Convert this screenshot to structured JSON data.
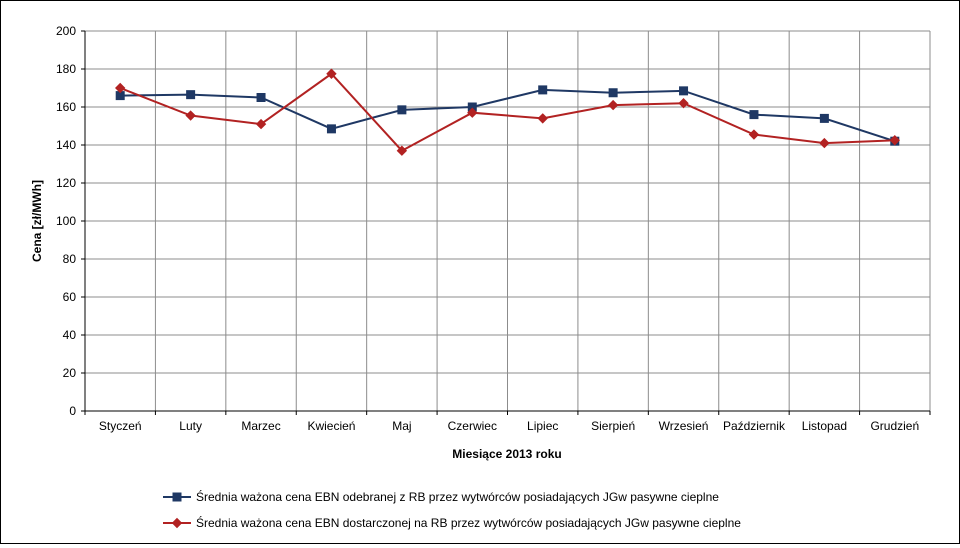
{
  "chart_data": {
    "type": "line",
    "xlabel": "Miesiące 2013  roku",
    "ylabel": "Cena [zł/MWh]",
    "ylim": [
      0,
      200
    ],
    "yticks": [
      0,
      20,
      40,
      60,
      80,
      100,
      120,
      140,
      160,
      180,
      200
    ],
    "grid": true,
    "legend_position": "bottom",
    "categories": [
      "Styczeń",
      "Luty",
      "Marzec",
      "Kwiecień",
      "Maj",
      "Czerwiec",
      "Lipiec",
      "Sierpień",
      "Wrzesień",
      "Październik",
      "Listopad",
      "Grudzień"
    ],
    "series": [
      {
        "name": "Średnia ważona cena EBN odebranej z RB przez wytwórców posiadających JGw pasywne cieplne",
        "color": "#1f3864",
        "marker": "square",
        "values": [
          166,
          166.5,
          165,
          148.5,
          158.5,
          160,
          169,
          167.5,
          168.5,
          156,
          154,
          142
        ]
      },
      {
        "name": "Średnia ważona cena EBN dostarczonej na RB przez wytwórców posiadających JGw pasywne cieplne",
        "color": "#b22222",
        "marker": "diamond",
        "values": [
          170,
          155.5,
          151,
          177.5,
          137,
          157,
          154,
          161,
          162,
          145.5,
          141,
          142.5
        ]
      }
    ]
  }
}
